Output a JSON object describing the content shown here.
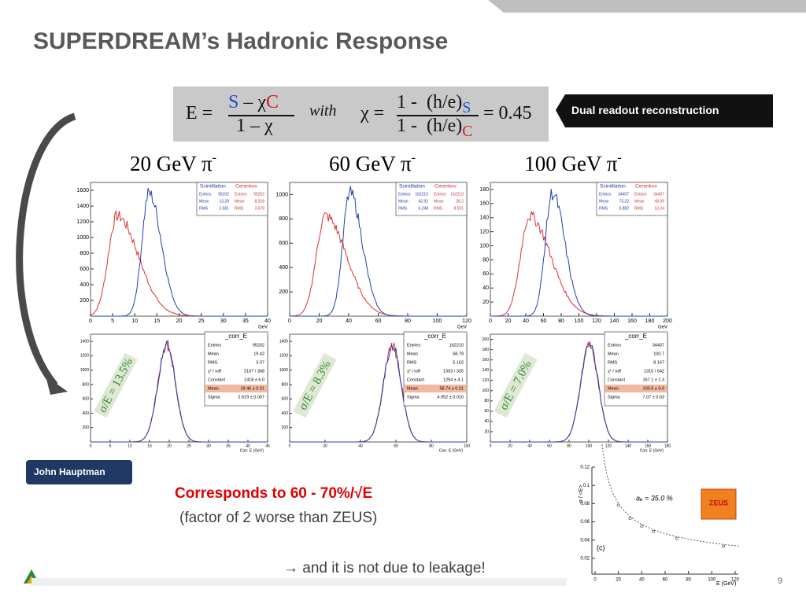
{
  "header": {
    "title": "SUPERDREAM’s Hadronic Response"
  },
  "formula": {
    "e_lhs": "E =",
    "e_num_s": "S",
    "e_num_mid": " – χ",
    "e_num_c": "C",
    "e_den": "1 – χ",
    "with": "with",
    "chi_lhs": "χ =",
    "chi_num": "1 -  (h/e)",
    "chi_num_sub": "S",
    "chi_den": "1 -  (h/e)",
    "chi_den_sub": "C",
    "result": "= 0.45"
  },
  "callout": "Dual readout reconstruction",
  "panels": [
    {
      "title": "20 GeV π",
      "sup": "-",
      "resolution": "σ/E = 13.5%",
      "top": {
        "xticks": [
          0,
          5,
          10,
          15,
          20,
          25,
          30,
          35,
          40
        ],
        "yticks": [
          200,
          400,
          600,
          800,
          1000,
          1200,
          1400,
          1600
        ],
        "xunit": "GeV",
        "stats": {
          "headers": [
            "Scintillation",
            "Cerenkov"
          ],
          "rows": [
            [
              "Entries",
              "95202",
              "Entries",
              "95202"
            ],
            [
              "Mean",
              "13.29",
              "Mean",
              "8.018"
            ],
            [
              "RMS",
              "2.681",
              "RMS",
              "3.678"
            ]
          ]
        }
      },
      "bottom": {
        "xticks": [
          0,
          5,
          10,
          15,
          20,
          25,
          30,
          35,
          40,
          45
        ],
        "yticks": [
          200,
          400,
          600,
          800,
          1000,
          1200,
          1400
        ],
        "xlabel": "Corr. E (GeV)",
        "stats": {
          "name": "_corr_E",
          "rows": [
            [
              "Entries",
              "95202"
            ],
            [
              "Mean",
              "19.42"
            ],
            [
              "RMS",
              "3.07"
            ],
            [
              "χ² / ndf",
              "2107 / 368"
            ],
            [
              "Constant",
              "1418 ± 6.0"
            ],
            [
              "Mean",
              "19.46 ± 0.01"
            ],
            [
              "Sigma",
              "2.619 ± 0.007"
            ]
          ]
        }
      }
    },
    {
      "title": "60 GeV π",
      "sup": "-",
      "resolution": "σ/E = 8.3%",
      "top": {
        "xticks": [
          0,
          20,
          40,
          60,
          80,
          100,
          120
        ],
        "yticks": [
          200,
          400,
          600,
          800,
          1000
        ],
        "xunit": "GeV",
        "stats": {
          "headers": [
            "Scintillation",
            "Cerenkov"
          ],
          "rows": [
            [
              "Entries",
              "162210",
              "Entries",
              "162210"
            ],
            [
              "Mean",
              "42.92",
              "Mean",
              "28.2"
            ],
            [
              "RMS",
              "6.248",
              "RMS",
              "8.591"
            ]
          ]
        }
      },
      "bottom": {
        "xticks": [
          0,
          20,
          40,
          60,
          80,
          100
        ],
        "yticks": [
          200,
          400,
          600,
          800,
          1000,
          1200,
          1400
        ],
        "xlabel": "Corr. E (GeV)",
        "stats": {
          "name": "_corr_E",
          "rows": [
            [
              "Entries",
              "162210"
            ],
            [
              "Mean",
              "58.79"
            ],
            [
              "RMS",
              "5.162"
            ],
            [
              "χ² / ndf",
              "1353 / 325"
            ],
            [
              "Constant",
              "1294 ± 4.1"
            ],
            [
              "Mean",
              "58.74 ± 0.01"
            ],
            [
              "Sigma",
              "4.952 ± 0.010"
            ]
          ]
        }
      }
    },
    {
      "title": "100 GeV π",
      "sup": "-",
      "resolution": "σ/E = 7.0%",
      "top": {
        "xticks": [
          0,
          20,
          40,
          60,
          80,
          100,
          120,
          140,
          160,
          180,
          200
        ],
        "yticks": [
          20,
          40,
          60,
          80,
          100,
          120,
          140,
          160,
          180
        ],
        "xunit": "GeV",
        "stats": {
          "headers": [
            "Scintillation",
            "Cerenkov"
          ],
          "rows": [
            [
              "Entries",
              "34407",
              "Entries",
              "34407"
            ],
            [
              "Mean",
              "73.22",
              "Mean",
              "48.09"
            ],
            [
              "RMS",
              "9.882",
              "RMS",
              "13.24"
            ]
          ]
        }
      },
      "bottom": {
        "xticks": [
          0,
          20,
          40,
          60,
          80,
          100,
          120,
          140,
          160,
          180
        ],
        "yticks": [
          20,
          40,
          60,
          80,
          100,
          120,
          140,
          160,
          180,
          200
        ],
        "xlabel": "Corr. E (GeV)",
        "stats": {
          "name": "_corr_E",
          "rows": [
            [
              "Entries",
              "34407"
            ],
            [
              "Mean",
              "100.7"
            ],
            [
              "RMS",
              "8.167"
            ],
            [
              "χ² / ndf",
              "1315 / 642"
            ],
            [
              "Constant",
              "167.1 ± 1.3"
            ],
            [
              "Mean",
              "100.5 ± 0.0"
            ],
            [
              "Sigma",
              "7.07 ± 0.63"
            ]
          ]
        }
      }
    }
  ],
  "author": "John Hauptman",
  "text": {
    "line1": "Corresponds to 60 - 70%/√E",
    "line2": "(factor of 2 worse than ZEUS)",
    "line3": "→ and it is not due to leakage!"
  },
  "zeus_plot": {
    "yticks": [
      "0.12",
      "0.1",
      "0.08",
      "0.06",
      "0.04",
      "0.02"
    ],
    "xticks": [
      "0",
      "20",
      "40",
      "60",
      "80",
      "100",
      "120"
    ],
    "ylabel": "σ / <E>",
    "xlabel": "E (GeV)",
    "annotation": "aₑ = 35.0 %",
    "panel_label": "(c)",
    "logo": "ZEUS"
  },
  "page_number": "9"
}
